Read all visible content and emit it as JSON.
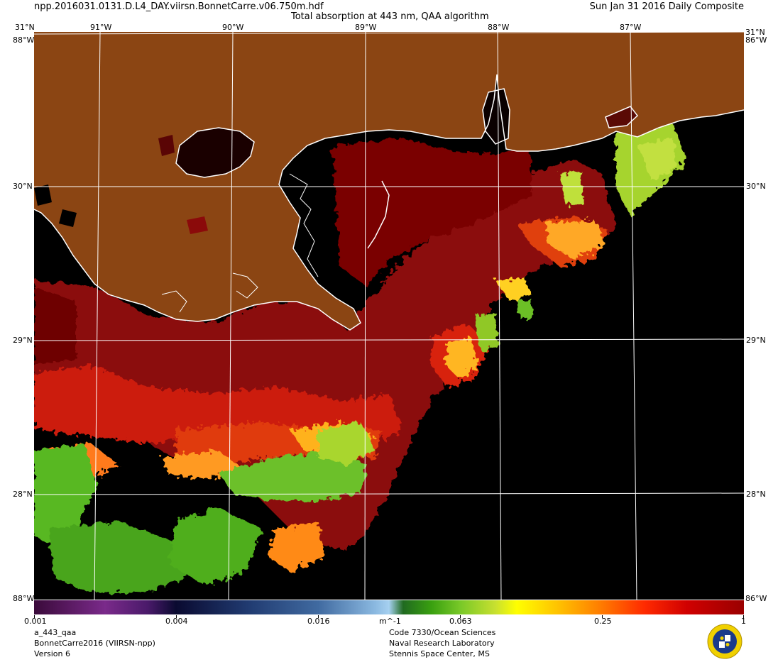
{
  "header": {
    "filename": "npp.2016031.0131.D.L4_DAY.viirsn.BonnetCarre.v06.750m.hdf",
    "title": "Total absorption at 443 nm, QAA algorithm",
    "date": "Sun Jan 31 2016 Daily Composite"
  },
  "map": {
    "lat_labels": [
      "31°N",
      "30°N",
      "29°N",
      "28°N"
    ],
    "lon_labels": [
      "91°W",
      "90°W",
      "89°W",
      "88°W",
      "87°W"
    ],
    "corner_labels": {
      "left_top": "88°W",
      "right_top": "86°W",
      "left_bottom": "88°W",
      "right_bottom": "86°W"
    },
    "colors": {
      "land": "#8B4513",
      "water_no_data": "#000000",
      "grid": "#ffffff",
      "coastline": "#ffffff"
    }
  },
  "colorbar": {
    "labels": [
      "0.001",
      "0.004",
      "0.016",
      "m^-1",
      "0.063",
      "0.25",
      "1"
    ],
    "scale": "log",
    "range": [
      0.001,
      1
    ]
  },
  "footer": {
    "left": [
      "a_443_qaa",
      "BonnetCarre2016 (VIIRSN-npp)",
      "Version 6"
    ],
    "center": [
      "Code 7330/Ocean Sciences",
      "Naval Research Laboratory",
      "Stennis Space Center, MS"
    ]
  }
}
